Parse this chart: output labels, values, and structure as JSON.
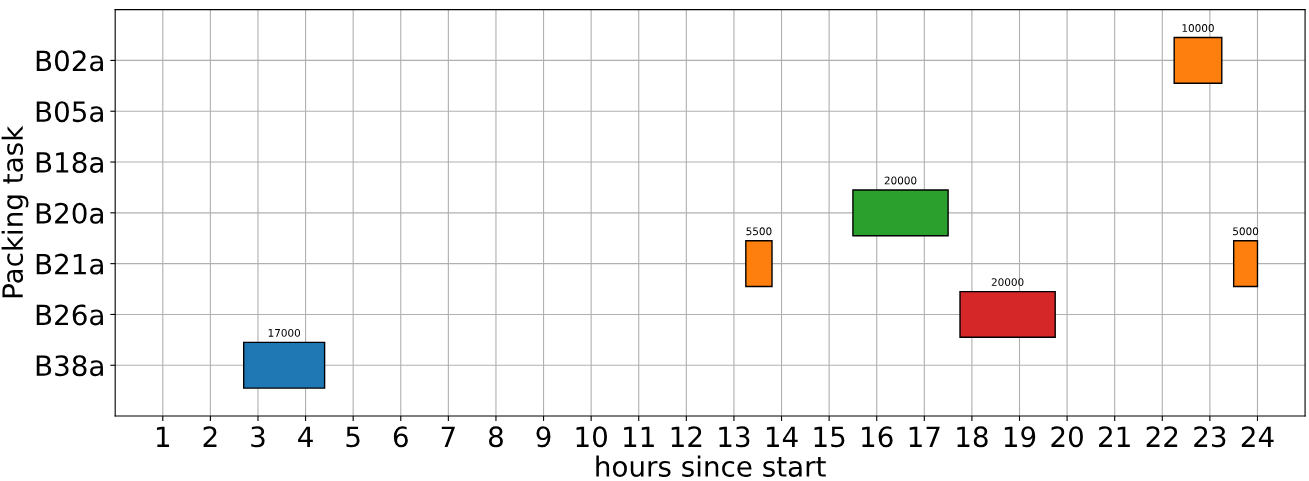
{
  "chart_data": {
    "type": "bar",
    "orientation": "horizontal",
    "xlabel": "hours since start",
    "ylabel": "Packing task",
    "categories": [
      "B02a",
      "B05a",
      "B18a",
      "B20a",
      "B21a",
      "B26a",
      "B38a"
    ],
    "series": [
      {
        "color": "#1f77b4",
        "values": [
          null,
          null,
          null,
          null,
          null,
          null,
          1.7
        ],
        "base": [
          null,
          null,
          null,
          null,
          null,
          null,
          2.7
        ]
      },
      {
        "color": "#ff7f0e",
        "values": [
          1.0,
          null,
          null,
          null,
          0.55,
          null,
          null
        ],
        "base": [
          22.25,
          null,
          null,
          null,
          13.25,
          null,
          null
        ]
      },
      {
        "color": "#ff7f0e",
        "values": [
          null,
          null,
          null,
          null,
          0.5,
          null,
          null
        ],
        "base": [
          null,
          null,
          null,
          null,
          23.5,
          null,
          null
        ]
      },
      {
        "color": "#2ca02c",
        "values": [
          null,
          null,
          null,
          2.0,
          null,
          null,
          null
        ],
        "base": [
          null,
          null,
          null,
          15.5,
          null,
          null,
          null
        ]
      },
      {
        "color": "#d62728",
        "values": [
          null,
          null,
          null,
          null,
          null,
          2.0,
          null
        ],
        "base": [
          null,
          null,
          null,
          null,
          null,
          17.75,
          null
        ]
      }
    ],
    "annotations": [
      "17000",
      "10000",
      "5500",
      "5000",
      "20000",
      "20000"
    ],
    "xlim": [
      0,
      25
    ],
    "xticks": [
      1,
      2,
      3,
      4,
      5,
      6,
      7,
      8,
      9,
      10,
      11,
      12,
      13,
      14,
      15,
      16,
      17,
      18,
      19,
      20,
      21,
      22,
      23,
      24
    ],
    "grid": true
  }
}
